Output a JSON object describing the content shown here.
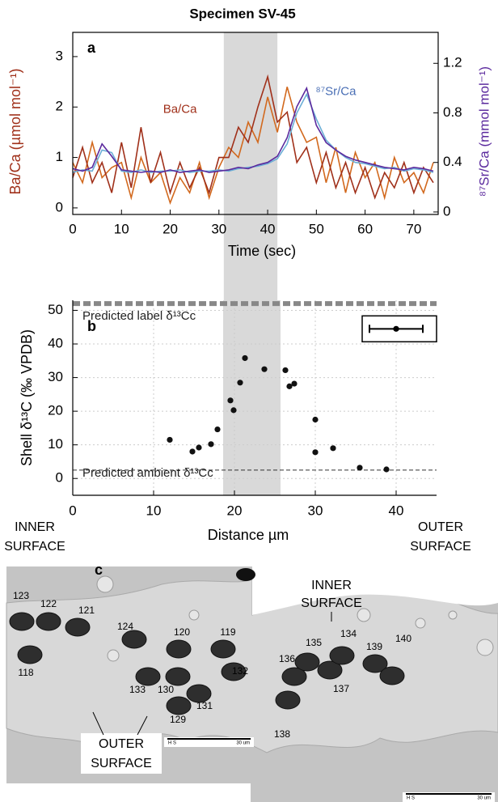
{
  "chart_data": [
    {
      "type": "line",
      "title": "Specimen SV-45",
      "panel_label": "a",
      "x_label": "Time (sec)",
      "y_label": "Ba/Ca (µmol mol⁻¹)",
      "y_label_color": "#a0301a",
      "y2_label": "⁸⁷Sr/Ca (mmol mol⁻¹)",
      "y2_label_color": "#5b2a9e",
      "x": [
        0,
        2,
        4,
        6,
        8,
        10,
        12,
        14,
        16,
        18,
        20,
        22,
        24,
        26,
        28,
        30,
        32,
        34,
        36,
        38,
        40,
        42,
        44,
        46,
        48,
        50,
        52,
        54,
        56,
        58,
        60,
        62,
        64,
        66,
        68,
        70,
        72,
        74
      ],
      "xlim": [
        0,
        75
      ],
      "xticks": [
        0,
        10,
        20,
        30,
        40,
        50,
        60,
        70
      ],
      "ylim": [
        -0.13,
        3.48
      ],
      "yticks": [
        0,
        1,
        2,
        3
      ],
      "y2lim": [
        -0.02,
        1.45
      ],
      "y2ticks": [
        0,
        0.4,
        0.8,
        1.2
      ],
      "highlight": [
        31,
        42
      ],
      "annotations": [
        {
          "text": "Ba/Ca",
          "color": "#a0301a"
        },
        {
          "text": "⁸⁷Sr/Ca",
          "color": "#4a6fb5"
        }
      ],
      "series": [
        {
          "color": "#d2691e",
          "values": [
            0.9,
            0.5,
            1.3,
            0.6,
            0.8,
            0.9,
            0.2,
            1.0,
            0.5,
            0.7,
            0.1,
            0.6,
            0.3,
            0.9,
            0.2,
            0.8,
            1.2,
            1.0,
            1.7,
            1.3,
            2.2,
            1.5,
            2.4,
            1.7,
            1.3,
            1.4,
            0.5,
            1.2,
            0.3,
            1.1,
            0.6,
            0.9,
            0.2,
            1.0,
            0.5,
            0.7,
            0.3,
            0.9
          ]
        },
        {
          "color": "#a0301a",
          "values": [
            0.6,
            1.2,
            0.5,
            0.9,
            0.3,
            1.3,
            0.4,
            1.6,
            0.5,
            1.1,
            0.3,
            0.9,
            0.4,
            0.8,
            0.3,
            1.0,
            1.0,
            1.6,
            1.3,
            2.0,
            2.6,
            1.7,
            1.9,
            0.9,
            1.2,
            0.5,
            1.1,
            0.4,
            0.9,
            0.3,
            0.8,
            0.2,
            0.7,
            0.4,
            0.9,
            0.3,
            0.8,
            0.5
          ]
        },
        {
          "color": "#6baed6",
          "axis": "y2",
          "values": [
            0.32,
            0.34,
            0.33,
            0.5,
            0.48,
            0.33,
            0.32,
            0.34,
            0.32,
            0.33,
            0.33,
            0.34,
            0.32,
            0.33,
            0.33,
            0.34,
            0.33,
            0.35,
            0.36,
            0.37,
            0.39,
            0.43,
            0.55,
            0.8,
            0.95,
            0.75,
            0.58,
            0.5,
            0.44,
            0.4,
            0.39,
            0.37,
            0.35,
            0.36,
            0.33,
            0.35,
            0.34,
            0.32
          ]
        },
        {
          "color": "#5b2a9e",
          "axis": "y2",
          "values": [
            0.35,
            0.33,
            0.36,
            0.55,
            0.45,
            0.34,
            0.33,
            0.32,
            0.33,
            0.32,
            0.34,
            0.32,
            0.33,
            0.34,
            0.32,
            0.33,
            0.34,
            0.36,
            0.35,
            0.38,
            0.4,
            0.45,
            0.6,
            0.85,
            1.0,
            0.7,
            0.56,
            0.5,
            0.45,
            0.42,
            0.4,
            0.38,
            0.36,
            0.35,
            0.34,
            0.36,
            0.35,
            0.33
          ]
        }
      ]
    },
    {
      "type": "scatter",
      "panel_label": "b",
      "x_label": "Distance µm",
      "y_label": "Shell δ¹³C (‰ VPDB)",
      "xlim": [
        0,
        45
      ],
      "xticks": [
        0,
        10,
        20,
        30,
        40
      ],
      "ylim": [
        -5,
        53
      ],
      "yticks": [
        0,
        10,
        20,
        30,
        40,
        50
      ],
      "grid": true,
      "highlight": [
        18.6,
        25.7
      ],
      "color": "#111111",
      "x": [
        12,
        14.8,
        15.6,
        17.1,
        17.9,
        19.5,
        19.9,
        20.7,
        21.3,
        23.7,
        26.3,
        26.8,
        27.4,
        30,
        30,
        32.2,
        35.5,
        38.8
      ],
      "values": [
        11.5,
        8,
        9.2,
        10.2,
        14.6,
        23.2,
        20.3,
        28.5,
        35.8,
        32.5,
        32.2,
        27.4,
        28.2,
        17.5,
        7.8,
        9,
        3.2,
        2.7
      ],
      "reference_lines": [
        {
          "value": 52,
          "label": "Predicted label δ¹³Cc",
          "color": "#888888"
        },
        {
          "value": 2.5,
          "label": "Predicted ambient δ¹³Cc",
          "color": "#333333"
        }
      ],
      "error_key": {
        "x": 40,
        "y": 44.5,
        "xerr": 3.3
      },
      "x_end_labels": [
        [
          "INNER",
          "SURFACE"
        ],
        [
          "OUTER",
          "SURFACE"
        ]
      ]
    }
  ],
  "panel_c": {
    "panel_label": "c",
    "inner_surface": [
      "INNER",
      "SURFACE"
    ],
    "outer_surface": [
      "OUTER",
      "SURFACE"
    ],
    "spots": [
      123,
      122,
      121,
      124,
      120,
      119,
      118,
      133,
      130,
      131,
      129,
      132,
      138,
      136,
      135,
      137,
      134,
      139,
      140
    ],
    "scale_bars": [
      {
        "marker": "H S",
        "label": "30 um"
      },
      {
        "marker": "H S",
        "label": "30 um"
      }
    ]
  }
}
